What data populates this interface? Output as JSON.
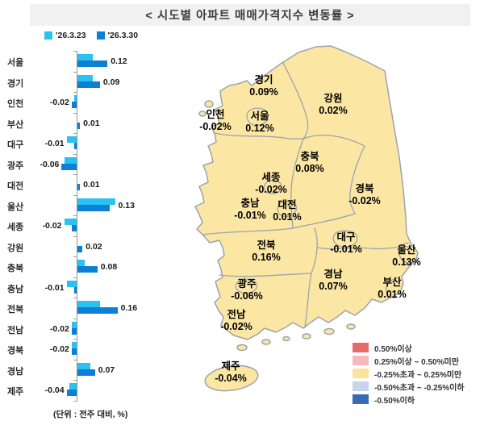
{
  "title": "< 시도별 아파트 매매가격지수 변동률 >",
  "bar_legend": [
    {
      "label": "'26.3.23",
      "color": "#29C2F2"
    },
    {
      "label": "'26.3.30",
      "color": "#0C80D5"
    }
  ],
  "chart_data": {
    "type": "bar",
    "orientation": "horizontal",
    "title": "시도별 아파트 매매가격지수 변동률",
    "xlabel": "전주 대비 변동률(%)",
    "ylabel": "",
    "xlim": [
      -0.16,
      0.18
    ],
    "grid": false,
    "legend_position": "top",
    "unit_note": "(단위 : 전주 대비, %)",
    "categories": [
      "서울",
      "경기",
      "인천",
      "부산",
      "대구",
      "광주",
      "대전",
      "울산",
      "세종",
      "강원",
      "충북",
      "충남",
      "전북",
      "전남",
      "경북",
      "경남",
      "제주"
    ],
    "series": [
      {
        "name": "'26.3.23",
        "color": "#29C2F2",
        "values": [
          0.06,
          0.06,
          -0.01,
          0.0,
          -0.04,
          -0.05,
          0.0,
          0.15,
          -0.05,
          0.0,
          0.03,
          -0.04,
          0.09,
          -0.02,
          -0.02,
          0.05,
          -0.03
        ]
      },
      {
        "name": "'26.3.30",
        "color": "#0C80D5",
        "values": [
          0.12,
          0.09,
          -0.02,
          0.01,
          -0.01,
          -0.06,
          0.01,
          0.13,
          -0.02,
          0.02,
          0.08,
          -0.01,
          0.16,
          -0.02,
          -0.02,
          0.07,
          -0.04
        ]
      }
    ],
    "value_labels_source": "'26.3.30"
  },
  "map": {
    "fill_color": "#FBE7A3",
    "border_color": "#9CA3AD",
    "regions": [
      {
        "name": "경기",
        "value": "0.09%"
      },
      {
        "name": "인천",
        "value": "-0.02%"
      },
      {
        "name": "서울",
        "value": "0.12%"
      },
      {
        "name": "강원",
        "value": "0.02%"
      },
      {
        "name": "충북",
        "value": "0.08%"
      },
      {
        "name": "세종",
        "value": "-0.02%"
      },
      {
        "name": "충남",
        "value": "-0.01%"
      },
      {
        "name": "대전",
        "value": "0.01%"
      },
      {
        "name": "경북",
        "value": "-0.02%"
      },
      {
        "name": "대구",
        "value": "-0.01%"
      },
      {
        "name": "울산",
        "value": "0.13%"
      },
      {
        "name": "경남",
        "value": "0.07%"
      },
      {
        "name": "부산",
        "value": "0.01%"
      },
      {
        "name": "광주",
        "value": "-0.06%"
      },
      {
        "name": "전북",
        "value": "0.16%"
      },
      {
        "name": "전남",
        "value": "-0.02%"
      },
      {
        "name": "제주",
        "value": "-0.04%"
      }
    ],
    "legend": [
      {
        "color": "#E66C6C",
        "label": "0.50%이상"
      },
      {
        "color": "#F5B9BD",
        "label": "0.25%이상 ~ 0.50%미만"
      },
      {
        "color": "#FBE39B",
        "label": "-0.25%초과 ~ 0.25%미만"
      },
      {
        "color": "#C8D4ED",
        "label": "-0.50%초과 ~ -0.25%이하"
      },
      {
        "color": "#3B6AB5",
        "label": "-0.50%이하"
      }
    ]
  }
}
